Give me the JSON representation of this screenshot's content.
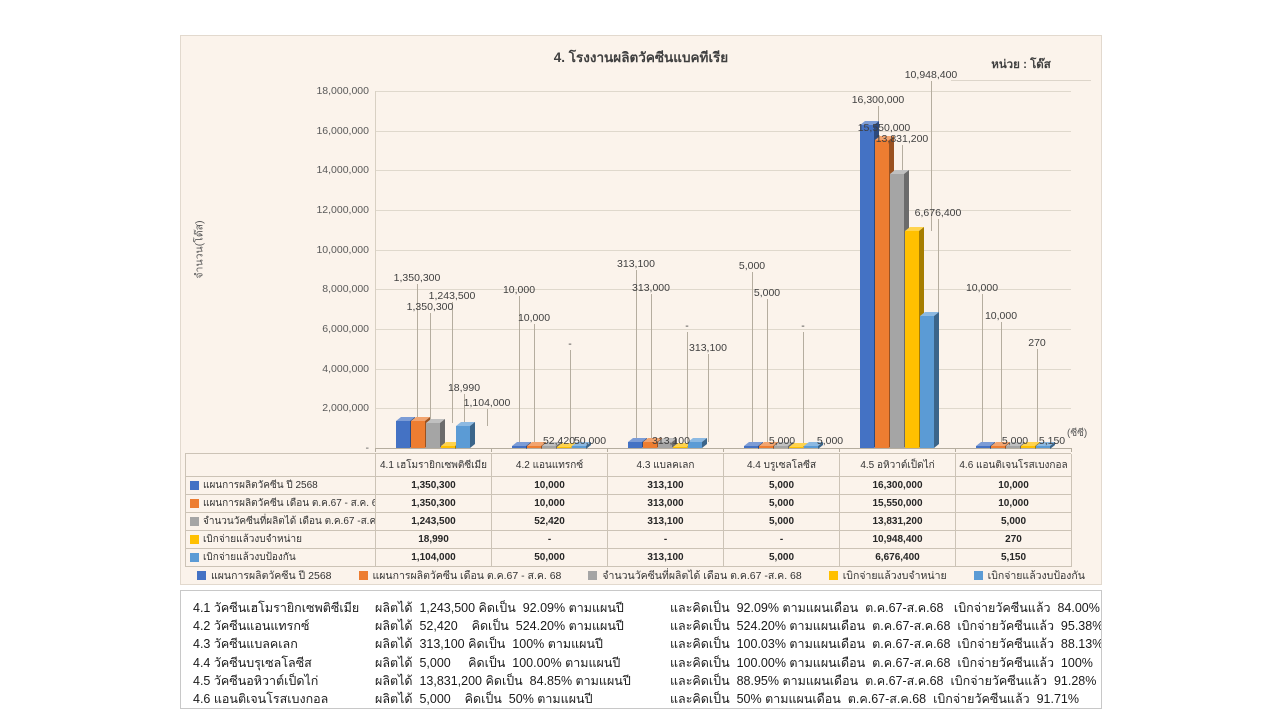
{
  "unit_note": "หน่วย : โด๊ส",
  "chart_data": {
    "type": "bar",
    "title": "4. โรงงานผลิตวัคซีนแบคทีเรีย",
    "ylabel": "จำนวน(โด๊ส)",
    "xlabel": "",
    "x_axis_suffix": "(ซีซี)",
    "ylim": [
      0,
      18000000
    ],
    "y_tick_step": 2000000,
    "y_ticks": [
      "18,000,000",
      "16,000,000",
      "14,000,000",
      "12,000,000",
      "10,000,000",
      "8,000,000",
      "6,000,000",
      "4,000,000",
      "2,000,000",
      "-"
    ],
    "grid": true,
    "legend_position": "bottom",
    "data_labels": true,
    "categories": [
      "4.1 เฮโมรายิกเซพติซีเมีย",
      "4.2 แอนแทรกซ์",
      "4.3 แบลคเลก",
      "4.4 บรูเซลโลซีส",
      "4.5 อหิวาต์เป็ดไก่",
      "4.6 แอนติเจนโรสเบงกอล"
    ],
    "series": [
      {
        "name": "แผนการผลิตวัคซีน ปี 2568",
        "color": "#4472C4",
        "values": [
          1350300,
          10000,
          313100,
          5000,
          16300000,
          10000
        ]
      },
      {
        "name": "แผนการผลิตวัคซีน เดือน ต.ค.67 - ส.ค. 68",
        "color": "#ED7D31",
        "values": [
          1350300,
          10000,
          313000,
          5000,
          15550000,
          10000
        ]
      },
      {
        "name": "จำนวนวัคซีนที่ผลิตได้ เดือน ต.ค.67 -ส.ค. 68",
        "color": "#A5A5A5",
        "values": [
          1243500,
          52420,
          313100,
          5000,
          13831200,
          5000
        ]
      },
      {
        "name": "เบิกจ่ายแล้วงบจำหน่าย",
        "color": "#FFC000",
        "values": [
          18990,
          null,
          null,
          null,
          10948400,
          270
        ]
      },
      {
        "name": "เบิกจ่ายแล้วงบป้องกัน",
        "color": "#5B9BD5",
        "values": [
          1104000,
          50000,
          313100,
          5000,
          6676400,
          5150
        ]
      }
    ]
  },
  "table": {
    "rows": [
      {
        "label": "แผนการผลิตวัคซีน ปี 2568",
        "color": "#4472C4",
        "cells": [
          "1,350,300",
          "10,000",
          "313,100",
          "5,000",
          "16,300,000",
          "10,000"
        ]
      },
      {
        "label": "แผนการผลิตวัคซีน เดือน ต.ค.67 - ส.ค. 68",
        "color": "#ED7D31",
        "cells": [
          "1,350,300",
          "10,000",
          "313,000",
          "5,000",
          "15,550,000",
          "10,000"
        ]
      },
      {
        "label": "จำนวนวัคซีนที่ผลิตได้ เดือน ต.ค.67 -ส.ค. 68",
        "color": "#A5A5A5",
        "cells": [
          "1,243,500",
          "52,420",
          "313,100",
          "5,000",
          "13,831,200",
          "5,000"
        ]
      },
      {
        "label": "เบิกจ่ายแล้วงบจำหน่าย",
        "color": "#FFC000",
        "cells": [
          "18,990",
          "-",
          "-",
          "-",
          "10,948,400",
          "270"
        ]
      },
      {
        "label": "เบิกจ่ายแล้วงบป้องกัน",
        "color": "#5B9BD5",
        "cells": [
          "1,104,000",
          "50,000",
          "313,100",
          "5,000",
          "6,676,400",
          "5,150"
        ]
      }
    ]
  },
  "summary": {
    "rows": [
      {
        "name": "4.1 วัคซีนเฮโมรายิกเซพติซีเมีย",
        "production": "ผลิตได้  1,243,500 คิดเป็น  92.09% ตามแผนปี",
        "monthly": "และคิดเป็น  92.09% ตามแผนเดือน  ต.ค.67-ส.ค.68   เบิกจ่ายวัคซีนแล้ว  84.00%"
      },
      {
        "name": "4.2 วัคซีนแอนแทรกซ์",
        "production": "ผลิตได้  52,420    คิดเป็น  524.20% ตามแผนปี",
        "monthly": "และคิดเป็น  524.20% ตามแผนเดือน  ต.ค.67-ส.ค.68  เบิกจ่ายวัคซีนแล้ว  95.38%"
      },
      {
        "name": "4.3 วัคซีนแบลคเลก",
        "production": "ผลิตได้  313,100 คิดเป็น  100% ตามแผนปี",
        "monthly": "และคิดเป็น  100.03% ตามแผนเดือน  ต.ค.67-ส.ค.68  เบิกจ่ายวัคซีนแล้ว  88.13%"
      },
      {
        "name": "4.4 วัคซีนบรุเซลโลซีส",
        "production": "ผลิตได้  5,000     คิดเป็น  100.00% ตามแผนปี",
        "monthly": "และคิดเป็น  100.00% ตามแผนเดือน  ต.ค.67-ส.ค.68  เบิกจ่ายวัคซีนแล้ว  100%"
      },
      {
        "name": "4.5 วัคซีนอหิวาต์เป็ดไก่",
        "production": "ผลิตได้  13,831,200 คิดเป็น  84.85% ตามแผนปี",
        "monthly": "และคิดเป็น  88.95% ตามแผนเดือน  ต.ค.67-ส.ค.68  เบิกจ่ายวัคซีนแล้ว  91.28%"
      },
      {
        "name": "4.6 แอนติเจนโรสเบงกอล",
        "production": "ผลิตได้  5,000    คิดเป็น  50% ตามแผนปี",
        "monthly": "และคิดเป็น  50% ตามแผนเดือน  ต.ค.67-ส.ค.68  เบิกจ่ายวัคซีนแล้ว  91.71%"
      }
    ]
  },
  "colors": {
    "panel_bg": "#FBF3EB",
    "gridline": "#DFD8CC",
    "axis": "#B5AD9F",
    "text": "#3F3F3F"
  }
}
